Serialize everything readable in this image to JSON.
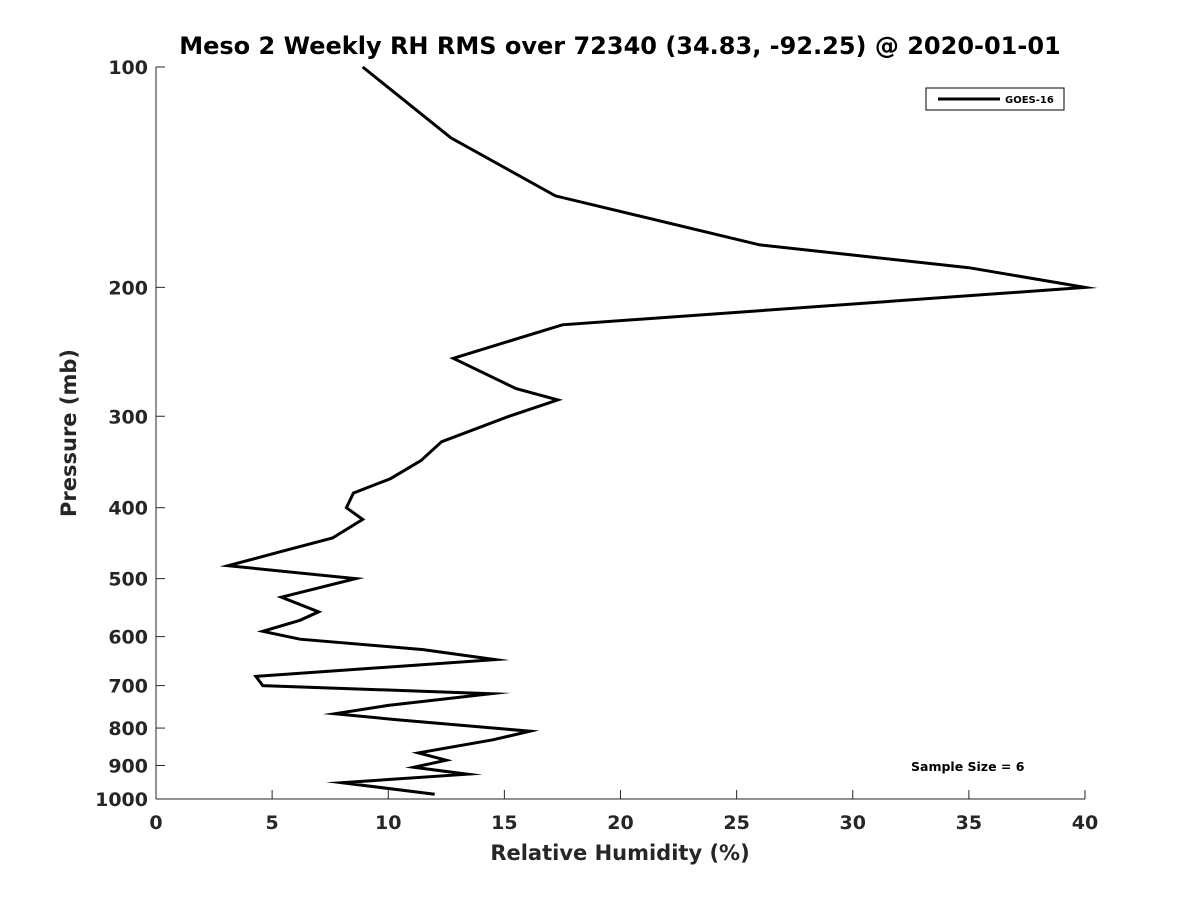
{
  "chart_data": {
    "type": "line",
    "title": "Meso 2 Weekly RH RMS over 72340 (34.83, -92.25) @ 2020-01-01",
    "xlabel": "Relative Humidity (%)",
    "ylabel": "Pressure (mb)",
    "xlim": [
      0,
      40
    ],
    "ylim": [
      100,
      1000
    ],
    "y_scale": "log",
    "y_reversed": true,
    "x_ticks": [
      0,
      5,
      10,
      15,
      20,
      25,
      30,
      35,
      40
    ],
    "y_ticks": [
      100,
      200,
      300,
      400,
      500,
      600,
      700,
      800,
      900,
      1000
    ],
    "grid": false,
    "legend_position": "top-right",
    "annotation": "Sample Size = 6",
    "series": [
      {
        "name": "GOES-16",
        "color": "#000000",
        "points": [
          [
            8.9,
            100
          ],
          [
            12.7,
            125
          ],
          [
            17.2,
            150
          ],
          [
            26.0,
            175
          ],
          [
            35.0,
            188
          ],
          [
            40.0,
            200
          ],
          [
            17.5,
            225
          ],
          [
            12.8,
            250
          ],
          [
            15.5,
            275
          ],
          [
            17.3,
            285
          ],
          [
            15.2,
            300
          ],
          [
            12.3,
            325
          ],
          [
            11.4,
            345
          ],
          [
            10.1,
            365
          ],
          [
            8.5,
            382
          ],
          [
            8.2,
            400
          ],
          [
            8.9,
            415
          ],
          [
            7.6,
            440
          ],
          [
            5.3,
            460
          ],
          [
            3.1,
            480
          ],
          [
            8.6,
            500
          ],
          [
            5.4,
            530
          ],
          [
            7.0,
            555
          ],
          [
            6.2,
            570
          ],
          [
            4.6,
            590
          ],
          [
            6.2,
            605
          ],
          [
            11.5,
            625
          ],
          [
            14.6,
            645
          ],
          [
            4.3,
            680
          ],
          [
            4.6,
            700
          ],
          [
            14.4,
            718
          ],
          [
            10.0,
            745
          ],
          [
            7.7,
            765
          ],
          [
            10.5,
            780
          ],
          [
            16.1,
            808
          ],
          [
            14.5,
            830
          ],
          [
            11.3,
            865
          ],
          [
            12.5,
            885
          ],
          [
            11.1,
            905
          ],
          [
            13.4,
            925
          ],
          [
            8.0,
            950
          ],
          [
            12.0,
            985
          ]
        ]
      }
    ]
  }
}
